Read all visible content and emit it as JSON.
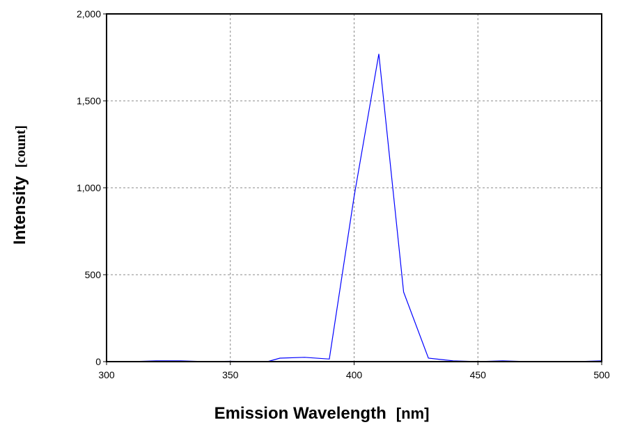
{
  "chart_data": {
    "type": "line",
    "xlabel": "Emission Wavelength",
    "xunit": "[nm]",
    "ylabel": "Intensity",
    "yunit": "[count]",
    "xlim": [
      300,
      500
    ],
    "ylim": [
      0,
      2000
    ],
    "x_ticks": [
      300,
      350,
      400,
      450,
      500
    ],
    "y_ticks": [
      0,
      500,
      1000,
      1500,
      2000
    ],
    "x_tick_labels": [
      "300",
      "350",
      "400",
      "450",
      "500"
    ],
    "y_tick_labels": [
      "0",
      "500",
      "1,000",
      "1,500",
      "2,000"
    ],
    "grid": true,
    "series_color": "#0000ff",
    "series": [
      {
        "x": [
          300,
          310,
          320,
          330,
          340,
          350,
          360,
          365,
          370,
          380,
          390,
          400,
          410,
          420,
          430,
          440,
          450,
          460,
          470,
          480,
          490,
          500
        ],
        "y": [
          0,
          0,
          5,
          5,
          0,
          2,
          0,
          0,
          20,
          25,
          15,
          950,
          1770,
          400,
          20,
          5,
          0,
          5,
          0,
          0,
          0,
          5
        ]
      }
    ]
  }
}
